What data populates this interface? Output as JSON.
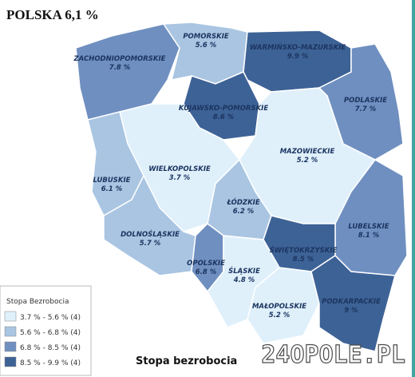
{
  "header": {
    "title": "POLSKA 6,1 %"
  },
  "regions": [
    {
      "name": "ZACHODNIOPOMORSKIE",
      "value": "7.8 %",
      "color": "#6f8fc0"
    },
    {
      "name": "POMORSKIE",
      "value": "5.6 %",
      "color": "#a9c5e2"
    },
    {
      "name": "WARMIŃSKO-MAZURSKIE",
      "value": "9.9 %",
      "color": "#3d6296"
    },
    {
      "name": "PODLASKIE",
      "value": "7.7 %",
      "color": "#6f8fc0"
    },
    {
      "name": "KUJAWSKO-POMORSKIE",
      "value": "8.6 %",
      "color": "#3d6296"
    },
    {
      "name": "WIELKOPOLSKIE",
      "value": "3.7 %",
      "color": "#dff0fb"
    },
    {
      "name": "LUBUSKIE",
      "value": "6.1 %",
      "color": "#a9c5e2"
    },
    {
      "name": "MAZOWIECKIE",
      "value": "5.2 %",
      "color": "#dff0fb"
    },
    {
      "name": "ŁÓDZKIE",
      "value": "6.2 %",
      "color": "#a9c5e2"
    },
    {
      "name": "LUBELSKIE",
      "value": "8.1 %",
      "color": "#6f8fc0"
    },
    {
      "name": "DOLNOŚLĄSKIE",
      "value": "5.7 %",
      "color": "#a9c5e2"
    },
    {
      "name": "OPOLSKIE",
      "value": "6.8 %",
      "color": "#6f8fc0"
    },
    {
      "name": "ŚWIĘTOKRZYSKIE",
      "value": "8.5 %",
      "color": "#3d6296"
    },
    {
      "name": "ŚLĄSKIE",
      "value": "4.8 %",
      "color": "#dff0fb"
    },
    {
      "name": "MAŁOPOLSKIE",
      "value": "5.2 %",
      "color": "#dff0fb"
    },
    {
      "name": "PODKARPACKIE",
      "value": "9 %",
      "color": "#3d6296"
    }
  ],
  "legend": {
    "title": "Stopa Bezrobocia",
    "entries": [
      {
        "label": "3.7 % - 5.6 % (4)",
        "color": "#dff0fb"
      },
      {
        "label": "5.6 % - 6.8 % (4)",
        "color": "#a9c5e2"
      },
      {
        "label": "6.8 % - 8.5 % (4)",
        "color": "#6f8fc0"
      },
      {
        "label": "8.5 % - 9.9 % (4)",
        "color": "#3d6296"
      }
    ]
  },
  "caption": "Stopa bezrobocia",
  "watermark": "24OPOLE.PL"
}
